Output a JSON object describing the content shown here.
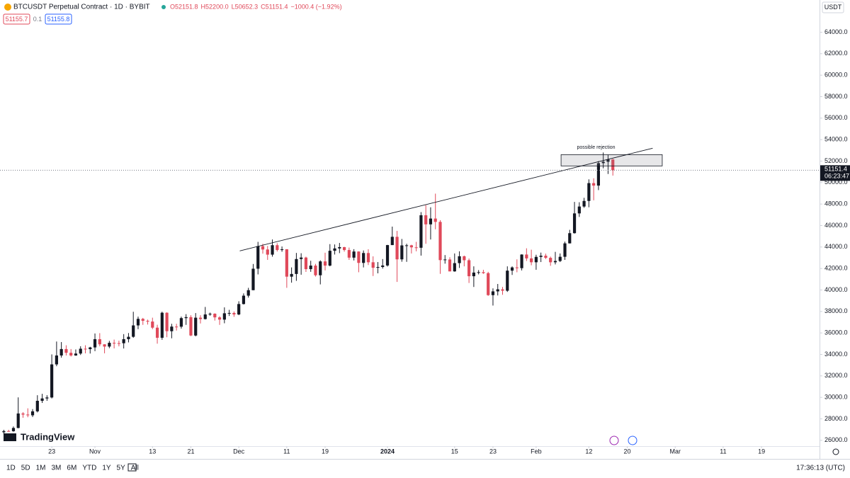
{
  "chart_data": {
    "type": "candlestick",
    "title": "BTCUSDT Perpetual Contract · 1D · BYBIT",
    "ohlc_legend": [
      "O52151.8",
      "H52200.0",
      "L50652.3",
      "C51151.4",
      "−1000.4 (−1.92%)"
    ],
    "quote": [
      "51155.7",
      "0.1",
      "51155.8"
    ],
    "currency": "USDT",
    "countdown": "06:23:47",
    "brand": "TradingView",
    "up_color": "#131722",
    "down_color": "#e0495a",
    "ohlc": [
      [
        26750,
        26980,
        26560,
        26860
      ],
      [
        26860,
        26980,
        26810,
        26850
      ],
      [
        26850,
        27290,
        26800,
        27150
      ],
      [
        27150,
        30000,
        27120,
        28500
      ],
      [
        28500,
        28620,
        28100,
        28400
      ],
      [
        28400,
        28980,
        28150,
        28330
      ],
      [
        28330,
        28910,
        28170,
        28700
      ],
      [
        28700,
        30200,
        28600,
        29680
      ],
      [
        29680,
        30330,
        29480,
        29900
      ],
      [
        29900,
        30200,
        29680,
        29990
      ],
      [
        29990,
        34000,
        29900,
        33070
      ],
      [
        33070,
        35200,
        32900,
        33900
      ],
      [
        33900,
        35150,
        33700,
        34500
      ],
      [
        34500,
        34850,
        33900,
        34150
      ],
      [
        34150,
        34500,
        33800,
        33900
      ],
      [
        33900,
        34460,
        33870,
        34080
      ],
      [
        34080,
        34760,
        33950,
        34530
      ],
      [
        34530,
        34850,
        34100,
        34490
      ],
      [
        34490,
        34710,
        34080,
        34650
      ],
      [
        34650,
        35950,
        34300,
        35420
      ],
      [
        35420,
        35980,
        34750,
        34940
      ],
      [
        34940,
        34950,
        34100,
        34730
      ],
      [
        34730,
        35260,
        34580,
        35080
      ],
      [
        35080,
        35380,
        34560,
        35050
      ],
      [
        35050,
        35280,
        34750,
        35040
      ],
      [
        35040,
        35890,
        34550,
        35420
      ],
      [
        35420,
        35990,
        35120,
        35640
      ],
      [
        35640,
        37970,
        35550,
        36700
      ],
      [
        36700,
        37520,
        36350,
        37310
      ],
      [
        37310,
        37400,
        36750,
        37130
      ],
      [
        37130,
        37240,
        36780,
        37060
      ],
      [
        37060,
        37420,
        36350,
        36490
      ],
      [
        36490,
        36760,
        35000,
        35550
      ],
      [
        35550,
        37980,
        35360,
        37880
      ],
      [
        37880,
        37920,
        35600,
        36160
      ],
      [
        36160,
        36850,
        35500,
        36590
      ],
      [
        36590,
        36850,
        36220,
        36580
      ],
      [
        36580,
        37520,
        36400,
        37380
      ],
      [
        37380,
        37750,
        36750,
        37470
      ],
      [
        37470,
        37650,
        35700,
        35760
      ],
      [
        35760,
        37850,
        35680,
        37420
      ],
      [
        37420,
        37650,
        36880,
        37290
      ],
      [
        37290,
        38420,
        37250,
        37720
      ],
      [
        37720,
        37890,
        37600,
        37790
      ],
      [
        37790,
        37830,
        37150,
        37450
      ],
      [
        37450,
        37560,
        36750,
        37240
      ],
      [
        37240,
        38380,
        36900,
        37830
      ],
      [
        37830,
        38150,
        37580,
        37860
      ],
      [
        37860,
        38000,
        37500,
        37720
      ],
      [
        37720,
        38950,
        37650,
        38690
      ],
      [
        38690,
        39680,
        38650,
        39470
      ],
      [
        39470,
        40200,
        39290,
        39980
      ],
      [
        39980,
        42420,
        39980,
        41980
      ],
      [
        41980,
        44480,
        41450,
        44080
      ],
      [
        44080,
        44300,
        43380,
        43770
      ],
      [
        43770,
        44100,
        42800,
        43290
      ],
      [
        43290,
        44700,
        43100,
        44170
      ],
      [
        44170,
        44360,
        43580,
        43720
      ],
      [
        43720,
        44050,
        43560,
        43790
      ],
      [
        43790,
        43800,
        40200,
        41240
      ],
      [
        41240,
        42100,
        40680,
        41490
      ],
      [
        41490,
        43450,
        40850,
        42880
      ],
      [
        42880,
        43420,
        41420,
        43020
      ],
      [
        43020,
        43100,
        41680,
        41940
      ],
      [
        41940,
        42720,
        41690,
        42270
      ],
      [
        42270,
        42430,
        41250,
        41370
      ],
      [
        41370,
        42760,
        40520,
        42660
      ],
      [
        42660,
        43470,
        41820,
        42270
      ],
      [
        42270,
        44270,
        42200,
        43650
      ],
      [
        43650,
        44240,
        43300,
        43870
      ],
      [
        43870,
        44380,
        43430,
        43990
      ],
      [
        43990,
        44020,
        43570,
        43720
      ],
      [
        43720,
        43950,
        42800,
        43010
      ],
      [
        43010,
        43800,
        42750,
        43580
      ],
      [
        43580,
        43600,
        41650,
        42520
      ],
      [
        42520,
        43680,
        42100,
        43440
      ],
      [
        43440,
        43790,
        42320,
        42580
      ],
      [
        42580,
        43130,
        41300,
        42070
      ],
      [
        42070,
        42600,
        41550,
        42140
      ],
      [
        42140,
        42880,
        41990,
        42280
      ],
      [
        42280,
        44200,
        42180,
        44180
      ],
      [
        44180,
        45900,
        44180,
        44950
      ],
      [
        44950,
        45500,
        40750,
        42850
      ],
      [
        42850,
        44750,
        42630,
        44150
      ],
      [
        44150,
        44300,
        42620,
        44160
      ],
      [
        44160,
        44210,
        43400,
        43970
      ],
      [
        43970,
        44480,
        43600,
        43930
      ],
      [
        43930,
        47250,
        43200,
        46960
      ],
      [
        46960,
        47900,
        44300,
        46110
      ],
      [
        46110,
        47700,
        44700,
        46650
      ],
      [
        46650,
        48970,
        45650,
        46340
      ],
      [
        46340,
        46500,
        41500,
        42780
      ],
      [
        42780,
        43250,
        42450,
        42840
      ],
      [
        42840,
        43050,
        41730,
        41730
      ],
      [
        41730,
        43400,
        41700,
        42500
      ],
      [
        42500,
        43600,
        42050,
        43140
      ],
      [
        43140,
        43200,
        42200,
        42770
      ],
      [
        42770,
        42930,
        40650,
        41280
      ],
      [
        41280,
        42200,
        40280,
        41620
      ],
      [
        41620,
        41850,
        41450,
        41660
      ],
      [
        41660,
        41880,
        41500,
        41570
      ],
      [
        41570,
        41690,
        39450,
        39520
      ],
      [
        39520,
        40150,
        38550,
        39870
      ],
      [
        39870,
        40560,
        39490,
        40060
      ],
      [
        40060,
        40280,
        39550,
        39930
      ],
      [
        39930,
        42200,
        39820,
        41800
      ],
      [
        41800,
        42200,
        41400,
        42100
      ],
      [
        42100,
        42850,
        41650,
        42030
      ],
      [
        42030,
        43320,
        41820,
        43300
      ],
      [
        43300,
        43880,
        42700,
        42940
      ],
      [
        42940,
        43750,
        42300,
        42580
      ],
      [
        42580,
        43280,
        41880,
        43080
      ],
      [
        43080,
        43480,
        42600,
        43190
      ],
      [
        43190,
        43380,
        42880,
        42990
      ],
      [
        42990,
        43110,
        42250,
        42580
      ],
      [
        42580,
        43550,
        42380,
        42700
      ],
      [
        42700,
        43400,
        42600,
        43090
      ],
      [
        43090,
        44500,
        42800,
        44340
      ],
      [
        44340,
        45600,
        44330,
        45290
      ],
      [
        45290,
        48200,
        45250,
        47130
      ],
      [
        47130,
        48170,
        46800,
        47770
      ],
      [
        47770,
        48580,
        47650,
        48290
      ],
      [
        48290,
        50300,
        47700,
        49950
      ],
      [
        49950,
        50400,
        48350,
        49720
      ],
      [
        49720,
        52000,
        49300,
        51810
      ],
      [
        51810,
        52800,
        51330,
        51940
      ],
      [
        51940,
        52580,
        50800,
        52151.8
      ],
      [
        52151.8,
        52200,
        50652.3,
        51151.4
      ]
    ],
    "xlim": [
      -0.8,
      170.1
    ],
    "xticks": [
      {
        "value": 10,
        "label": "23"
      },
      {
        "value": 19,
        "label": "Nov"
      },
      {
        "value": 31,
        "label": "13"
      },
      {
        "value": 39,
        "label": "21"
      },
      {
        "value": 49,
        "label": "Dec"
      },
      {
        "value": 59,
        "label": "11"
      },
      {
        "value": 67,
        "label": "19"
      },
      {
        "value": 80,
        "label": "2024"
      },
      {
        "value": 94,
        "label": "15"
      },
      {
        "value": 102,
        "label": "23"
      },
      {
        "value": 111,
        "label": "Feb"
      },
      {
        "value": 122,
        "label": "12"
      },
      {
        "value": 130,
        "label": "20"
      },
      {
        "value": 140,
        "label": "Mar"
      },
      {
        "value": 150,
        "label": "11"
      },
      {
        "value": 158,
        "label": "19"
      }
    ],
    "ylim": [
      24800,
      67000
    ],
    "yticks": [
      {
        "value": 26000,
        "label": "26000.0"
      },
      {
        "value": 28000,
        "label": "28000.0"
      },
      {
        "value": 30000,
        "label": "30000.0"
      },
      {
        "value": 32000,
        "label": "32000.0"
      },
      {
        "value": 34000,
        "label": "34000.0"
      },
      {
        "value": 36000,
        "label": "36000.0"
      },
      {
        "value": 38000,
        "label": "38000.0"
      },
      {
        "value": 40000,
        "label": "40000.0"
      },
      {
        "value": 42000,
        "label": "42000.0"
      },
      {
        "value": 44000,
        "label": "44000.0"
      },
      {
        "value": 46000,
        "label": "46000.0"
      },
      {
        "value": 48000,
        "label": "48000.0"
      },
      {
        "value": 50000,
        "label": "50000.0"
      },
      {
        "value": 52000,
        "label": "52000.0"
      },
      {
        "value": 54000,
        "label": "54000.0"
      },
      {
        "value": 56000,
        "label": "56000.0"
      },
      {
        "value": 58000,
        "label": "58000.0"
      },
      {
        "value": 60000,
        "label": "60000.0"
      },
      {
        "value": 62000,
        "label": "62000.0"
      },
      {
        "value": 64000,
        "label": "64000.0"
      }
    ],
    "trendline": {
      "start": [
        49.2,
        43640
      ],
      "end": [
        135.3,
        53200
      ]
    },
    "zone": {
      "label": "possible rejection",
      "x": [
        116.2,
        137.3
      ],
      "y": [
        51550,
        52600
      ]
    },
    "timeframes": [
      "1D",
      "5D",
      "1M",
      "3M",
      "6M",
      "YTD",
      "1Y",
      "5Y",
      "All"
    ],
    "clock": "17:36:13 (UTC)"
  }
}
